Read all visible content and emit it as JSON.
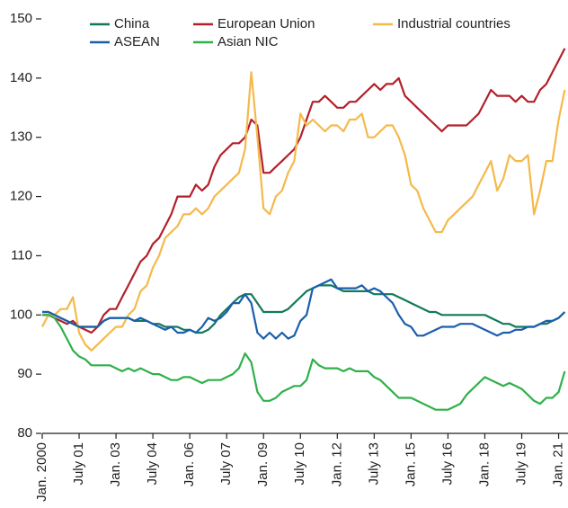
{
  "chart_data": {
    "type": "line",
    "categories": [
      "Jan. 2000",
      null,
      null,
      null,
      null,
      null,
      "July 01",
      null,
      null,
      null,
      null,
      null,
      "Jan. 03",
      null,
      null,
      null,
      null,
      null,
      "July 04",
      null,
      null,
      null,
      null,
      null,
      "Jan. 06",
      null,
      null,
      null,
      null,
      null,
      "July 07",
      null,
      null,
      null,
      null,
      null,
      "Jan. 09",
      null,
      null,
      null,
      null,
      null,
      "July 10",
      null,
      null,
      null,
      null,
      null,
      "Jan. 12",
      null,
      null,
      null,
      null,
      null,
      "July 13",
      null,
      null,
      null,
      null,
      null,
      "Jan. 15",
      null,
      null,
      null,
      null,
      null,
      "July 16",
      null,
      null,
      null,
      null,
      null,
      "Jan. 18",
      null,
      null,
      null,
      null,
      null,
      "July 19",
      null,
      null,
      null,
      null,
      null,
      "Jan. 21",
      null
    ],
    "ylim": [
      80,
      150
    ],
    "yticks": [
      80,
      90,
      100,
      110,
      120,
      130,
      140,
      150
    ],
    "grid": false,
    "series": [
      {
        "name": "China",
        "color": "#13795b",
        "values": [
          100.5,
          100.5,
          100,
          99.5,
          99,
          98.5,
          98,
          98,
          98,
          98,
          99,
          99.5,
          99.5,
          99.5,
          99.5,
          99,
          99,
          99,
          98.5,
          98.5,
          98,
          98,
          98,
          97.5,
          97.5,
          97,
          97,
          97.5,
          98.5,
          100,
          101,
          102,
          103,
          103.5,
          103.5,
          102,
          100.5,
          100.5,
          100.5,
          100.5,
          101,
          102,
          103,
          104,
          104.5,
          105,
          105,
          105,
          104.5,
          104,
          104,
          104,
          104,
          104,
          103.5,
          103.5,
          103.5,
          103.5,
          103,
          102.5,
          102,
          101.5,
          101,
          100.5,
          100.5,
          100,
          100,
          100,
          100,
          100,
          100,
          100,
          100,
          99.5,
          99,
          98.5,
          98.5,
          98,
          98,
          98,
          98,
          98.5,
          98.5,
          99,
          99.5,
          100.5
        ]
      },
      {
        "name": "European Union",
        "color": "#b3202a",
        "values": [
          100,
          100,
          99.5,
          99,
          98.5,
          99,
          98,
          97.5,
          97,
          98,
          100,
          101,
          101,
          103,
          105,
          107,
          109,
          110,
          112,
          113,
          115,
          117,
          120,
          120,
          120,
          122,
          121,
          122,
          125,
          127,
          128,
          129,
          129,
          130,
          133,
          132,
          124,
          124,
          125,
          126,
          127,
          128,
          130,
          133,
          136,
          136,
          137,
          136,
          135,
          135,
          136,
          136,
          137,
          138,
          139,
          138,
          139,
          139,
          140,
          137,
          136,
          135,
          134,
          133,
          132,
          131,
          132,
          132,
          132,
          132,
          133,
          134,
          136,
          138,
          137,
          137,
          137,
          136,
          137,
          136,
          136,
          138,
          139,
          141,
          143,
          145
        ]
      },
      {
        "name": "Industrial countries",
        "color": "#f5b94b",
        "values": [
          98,
          100,
          100,
          101,
          101,
          103,
          97,
          95,
          94,
          95,
          96,
          97,
          98,
          98,
          100,
          101,
          104,
          105,
          108,
          110,
          113,
          114,
          115,
          117,
          117,
          118,
          117,
          118,
          120,
          121,
          122,
          123,
          124,
          128,
          141,
          130,
          118,
          117,
          120,
          121,
          124,
          126,
          134,
          132,
          133,
          132,
          131,
          132,
          132,
          131,
          133,
          133,
          134,
          130,
          130,
          131,
          132,
          132,
          130,
          127,
          122,
          121,
          118,
          116,
          114,
          114,
          116,
          117,
          118,
          119,
          120,
          122,
          124,
          126,
          121,
          123,
          127,
          126,
          126,
          127,
          117,
          121,
          126,
          126,
          133,
          138
        ]
      },
      {
        "name": "ASEAN",
        "color": "#1b5eab",
        "values": [
          100.5,
          100.5,
          100,
          99.5,
          99,
          98.5,
          98,
          98,
          98,
          98,
          99,
          99.5,
          99.5,
          99.5,
          99.5,
          99,
          99.5,
          99,
          98.5,
          98,
          97.5,
          98,
          97,
          97,
          97.5,
          97,
          98,
          99.5,
          99,
          99.5,
          100.5,
          102,
          102,
          103.5,
          102,
          97,
          96,
          97,
          96,
          97,
          96,
          96.5,
          99,
          100,
          104.5,
          105,
          105.5,
          106,
          104.5,
          104.5,
          104.5,
          104.5,
          105,
          104,
          104.5,
          104,
          103,
          102,
          100,
          98.5,
          98,
          96.5,
          96.5,
          97,
          97.5,
          98,
          98,
          98,
          98.5,
          98.5,
          98.5,
          98,
          97.5,
          97,
          96.5,
          97,
          97,
          97.5,
          97.5,
          98,
          98,
          98.5,
          99,
          99,
          99.5,
          100.5
        ]
      },
      {
        "name": "Asian NIC",
        "color": "#2fb04a",
        "values": [
          100,
          100,
          99.5,
          98,
          96,
          94,
          93,
          92.5,
          91.5,
          91.5,
          91.5,
          91.5,
          91,
          90.5,
          91,
          90.5,
          91,
          90.5,
          90,
          90,
          89.5,
          89,
          89,
          89.5,
          89.5,
          89,
          88.5,
          89,
          89,
          89,
          89.5,
          90,
          91,
          93.5,
          92,
          87,
          85.5,
          85.5,
          86,
          87,
          87.5,
          88,
          88,
          89,
          92.5,
          91.5,
          91,
          91,
          91,
          90.5,
          91,
          90.5,
          90.5,
          90.5,
          89.5,
          89,
          88,
          87,
          86,
          86,
          86,
          85.5,
          85,
          84.5,
          84,
          84,
          84,
          84.5,
          85,
          86.5,
          87.5,
          88.5,
          89.5,
          89,
          88.5,
          88,
          88.5,
          88,
          87.5,
          86.5,
          85.5,
          85,
          86,
          86,
          87,
          90.5
        ]
      }
    ]
  }
}
